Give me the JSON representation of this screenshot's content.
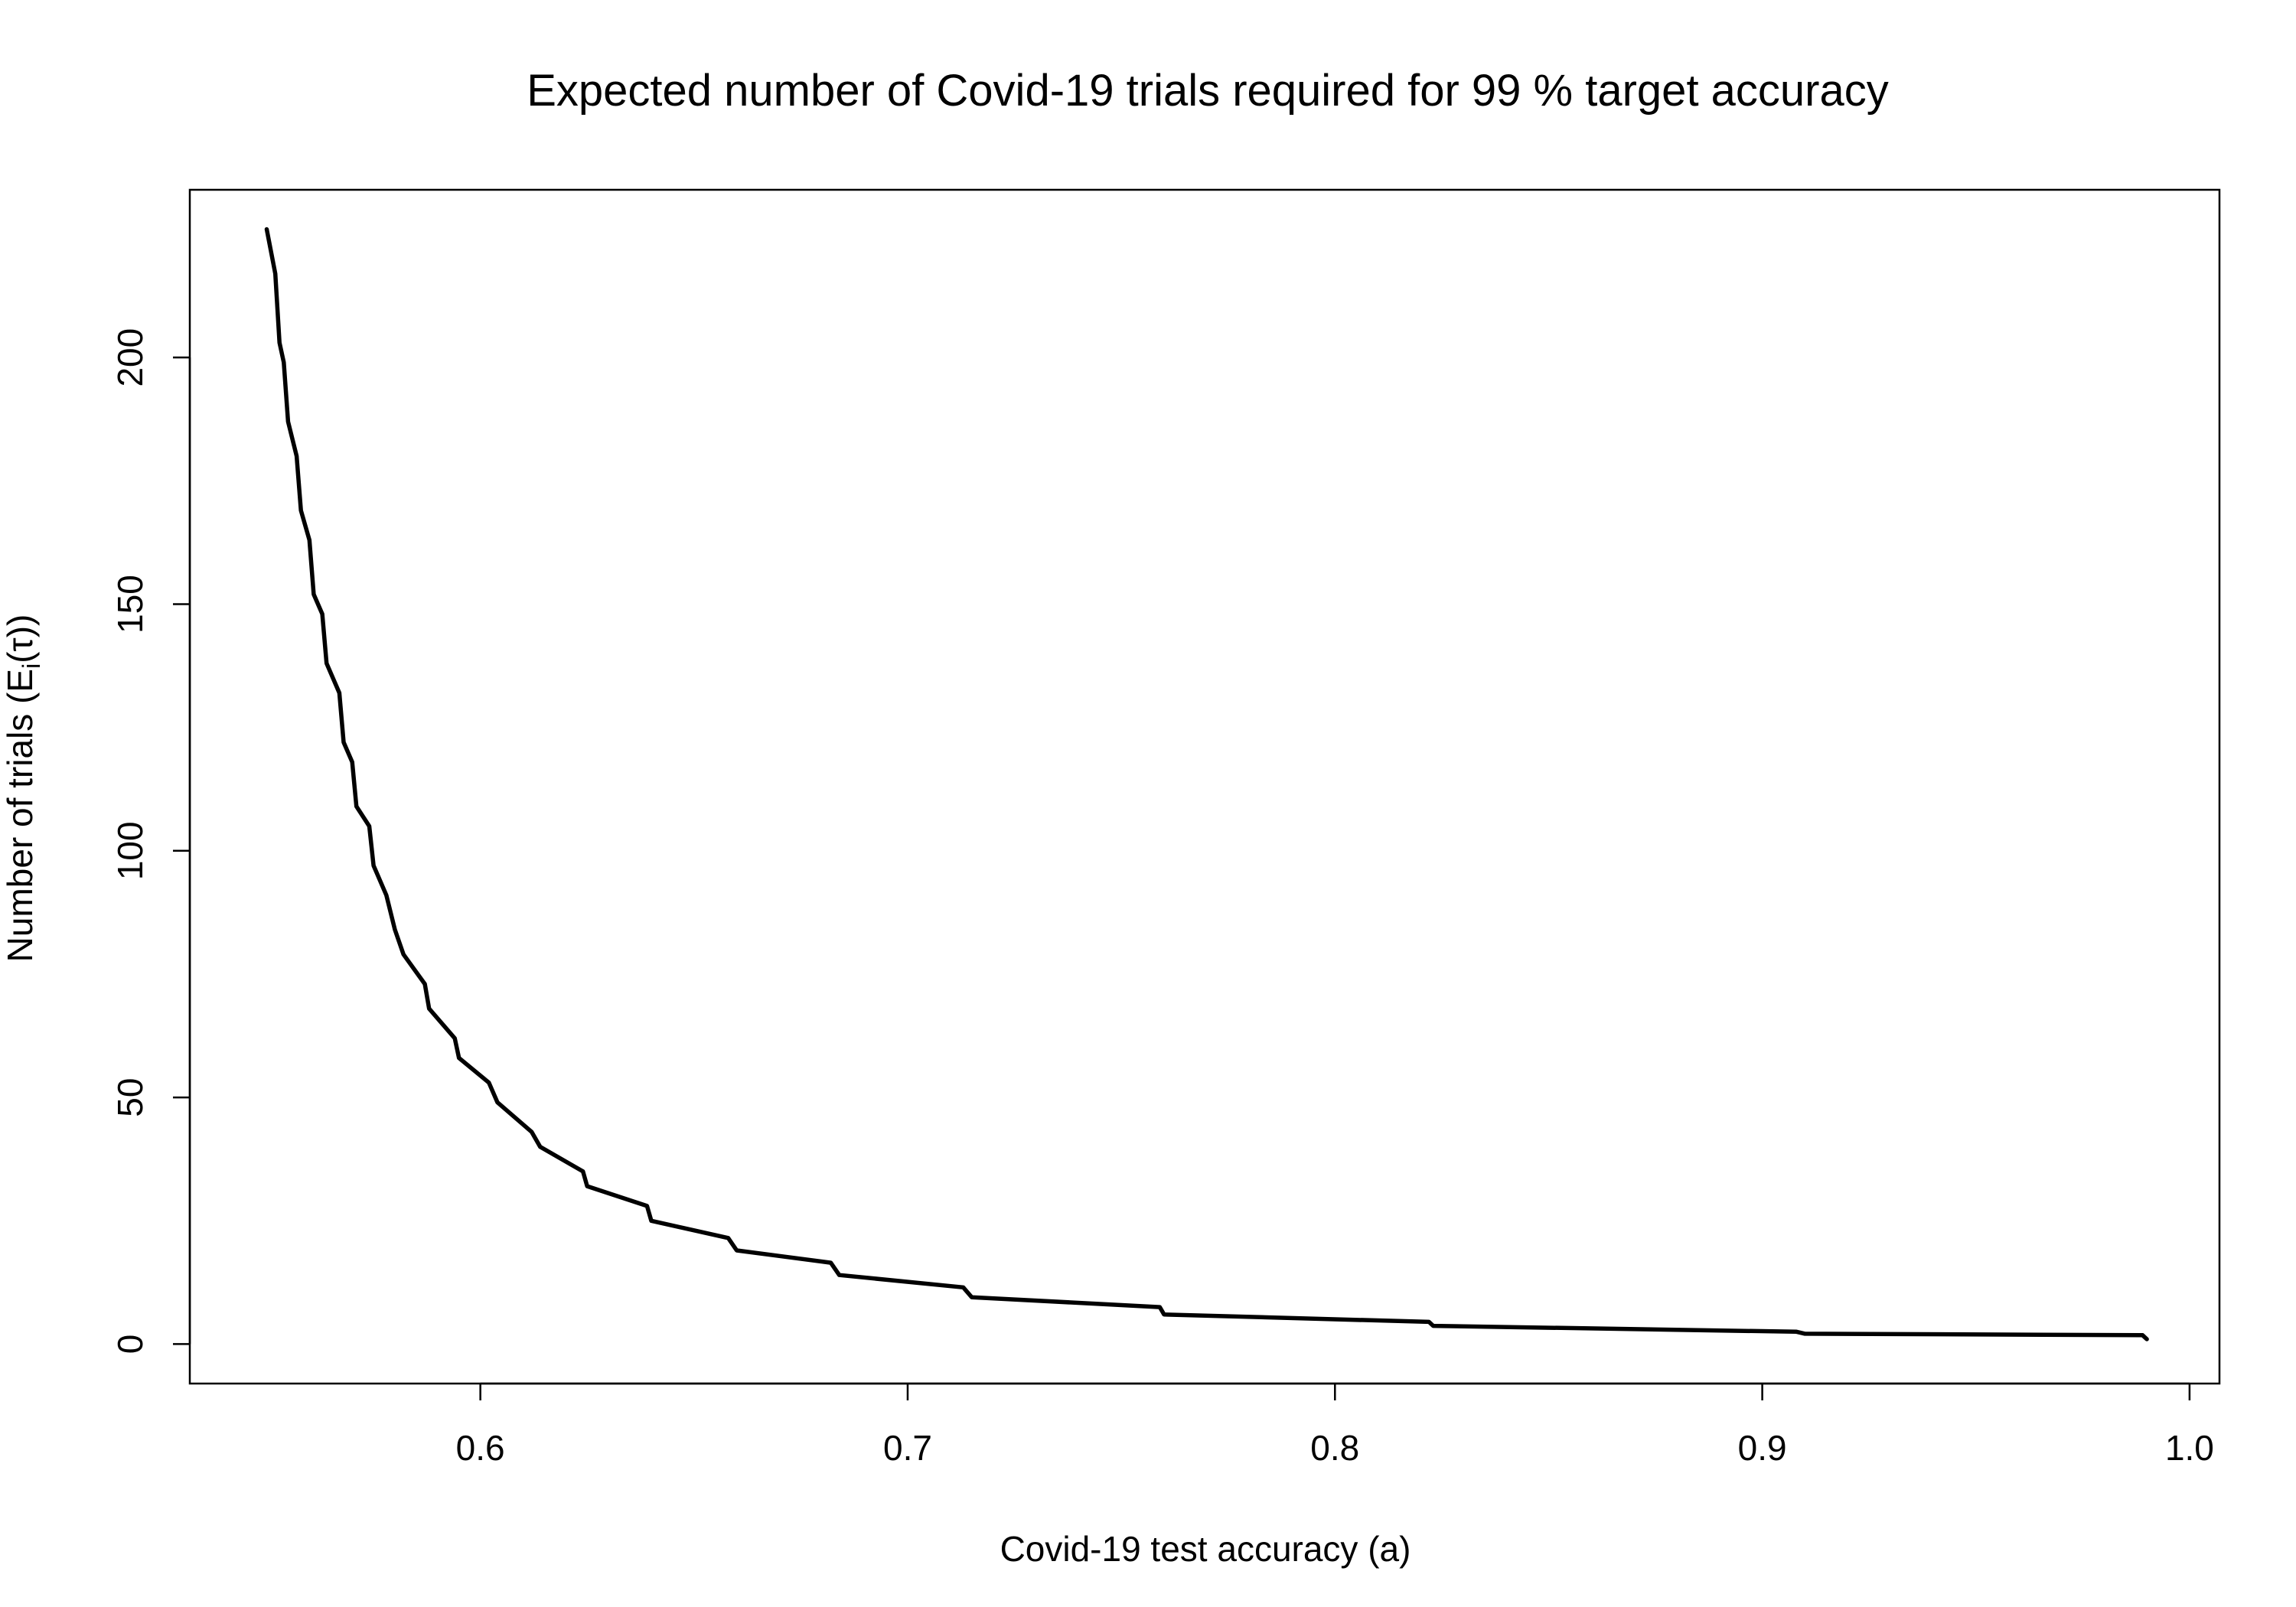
{
  "chart_data": {
    "type": "line",
    "title": "Expected number of Covid-19 trials required for  99 % target accuracy",
    "xlabel": "Covid-19 test accuracy (a)",
    "ylabel": {
      "prefix": "Number of trials (E",
      "subscript": "i",
      "suffix": "(τ))"
    },
    "xlim": [
      0.532,
      1.007
    ],
    "ylim": [
      -8,
      234
    ],
    "x_ticks": [
      0.6,
      0.7,
      0.8,
      0.9,
      1.0
    ],
    "x_tick_labels": [
      "0.6",
      "0.7",
      "0.8",
      "0.9",
      "1.0"
    ],
    "y_ticks": [
      0,
      50,
      100,
      150,
      200
    ],
    "y_tick_labels": [
      "0",
      "50",
      "100",
      "150",
      "200"
    ],
    "grid": false,
    "legend": "none",
    "series": [
      {
        "color": "#000000",
        "x": [
          0.55,
          0.552,
          0.553,
          0.554,
          0.555,
          0.557,
          0.558,
          0.56,
          0.561,
          0.563,
          0.564,
          0.567,
          0.568,
          0.57,
          0.571,
          0.574,
          0.575,
          0.578,
          0.58,
          0.582,
          0.587,
          0.588,
          0.594,
          0.595,
          0.602,
          0.604,
          0.612,
          0.614,
          0.624,
          0.625,
          0.639,
          0.64,
          0.658,
          0.66,
          0.682,
          0.684,
          0.713,
          0.715,
          0.759,
          0.76,
          0.822,
          0.823,
          0.908,
          0.91,
          0.989,
          0.99
        ],
        "y": [
          226,
          217,
          203,
          199,
          187,
          180,
          169,
          163,
          152,
          148,
          138,
          132,
          122,
          118,
          109,
          105,
          97,
          91,
          84,
          79,
          73,
          68,
          62,
          58,
          53,
          49,
          43,
          40,
          35,
          32,
          28,
          25,
          21.5,
          19,
          16.5,
          14,
          11.5,
          9.5,
          7.5,
          6,
          4.5,
          3.7,
          2.5,
          2.1,
          1.8,
          1.0
        ]
      }
    ]
  }
}
